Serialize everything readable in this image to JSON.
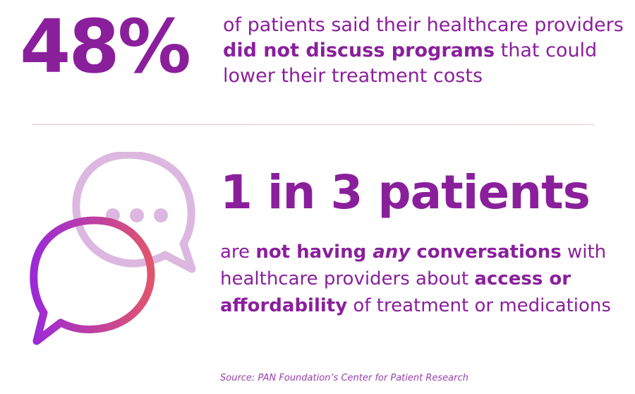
{
  "stat": {
    "value": "48%",
    "desc_part1": "of patients said their healthcare providers ",
    "desc_bold": "did not discuss programs",
    "desc_part2": " that could lower their treatment costs"
  },
  "headline": "1 in 3 patients",
  "body": {
    "part1": "are ",
    "bold1": "not having ",
    "bold_italic": "any",
    "bold2": " conversations",
    "part2": " with healthcare providers about ",
    "bold3": "access or affordability",
    "part3": " of treatment or medications"
  },
  "source": "Source: PAN Foundation’s Center for Patient Research",
  "colors": {
    "primary_purple": "#8a1f9c",
    "light_bubble": "#dcb8e0",
    "gradient_start": "#9b2ad6",
    "gradient_end": "#e0546e"
  },
  "icons": [
    "chat-bubble-icon",
    "ellipsis-icon"
  ]
}
